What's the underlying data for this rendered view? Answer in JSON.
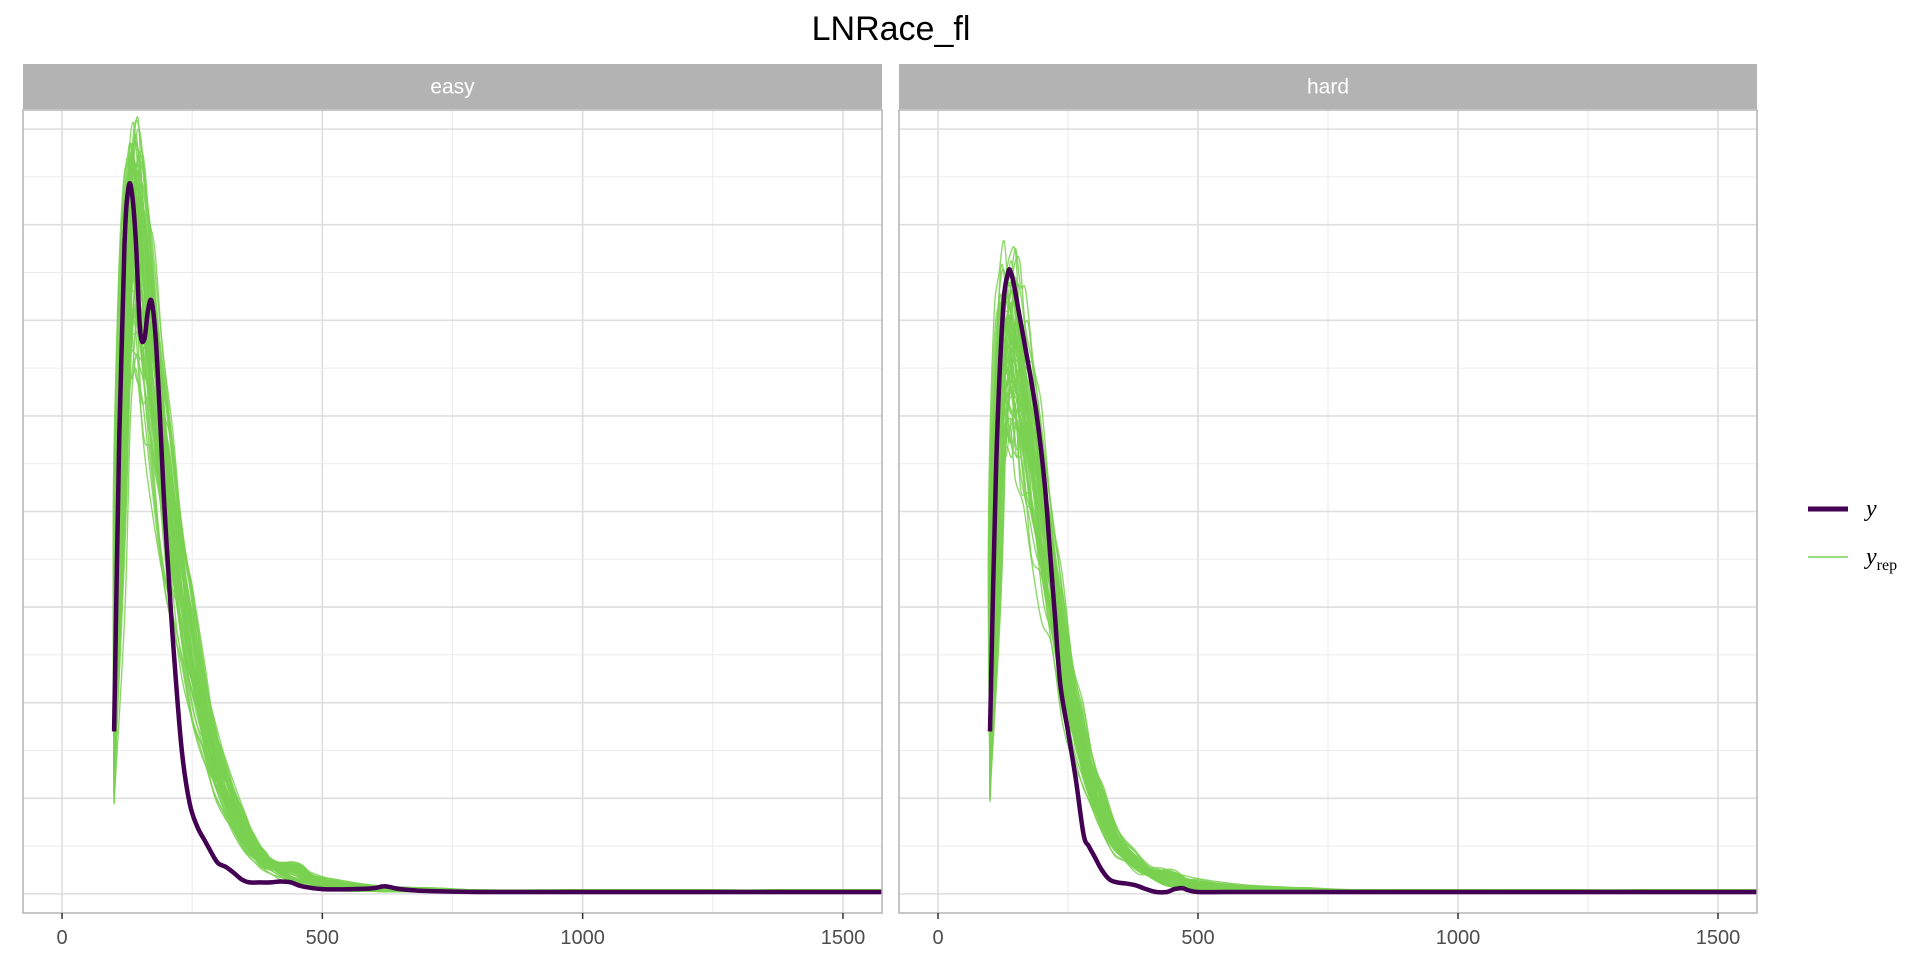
{
  "chart_data": {
    "type": "line",
    "title": "LNRace_fl",
    "xlabel": "",
    "ylabel": "",
    "xlim": [
      -75,
      1575
    ],
    "ylim": [
      -0.0002,
      0.0082
    ],
    "x_ticks": [
      0,
      500,
      1000,
      1500
    ],
    "x_tick_labels": [
      "0",
      "500",
      "1000",
      "1500"
    ],
    "grid": true,
    "legend_position": "right",
    "legend": [
      {
        "key": "y",
        "label": "y",
        "subscript": "",
        "color": "#440154",
        "role": "observed"
      },
      {
        "key": "yrep",
        "label": "y",
        "subscript": "rep",
        "color": "#7ad151",
        "role": "replicated"
      }
    ],
    "colors": {
      "observed": "#440154",
      "replicated": "#7ad151",
      "strip": "#b3b3b3",
      "grid": "#ebebeb"
    },
    "panels": [
      {
        "label": "easy",
        "series": [
          {
            "name": "y",
            "color": "#440154",
            "x": [
              100,
              110,
              120,
              128,
              135,
              142,
              150,
              158,
              165,
              172,
              180,
              188,
              195,
              205,
              215,
              230,
              245,
              260,
              275,
              290,
              300,
              315,
              330,
              345,
              360,
              380,
              400,
              420,
              440,
              460,
              500,
              560,
              600,
              620,
              650,
              700,
              800,
              900,
              1000,
              1200,
              1400,
              1580
            ],
            "y": [
              0.0017,
              0.0048,
              0.0068,
              0.0074,
              0.0073,
              0.0068,
              0.0059,
              0.0058,
              0.0061,
              0.0062,
              0.0058,
              0.005,
              0.0042,
              0.0033,
              0.0025,
              0.0015,
              0.00095,
              0.0007,
              0.00055,
              0.0004,
              0.00032,
              0.00028,
              0.00022,
              0.00015,
              0.00012,
              0.00012,
              0.00012,
              0.00013,
              0.00012,
              8e-05,
              5e-05,
              5e-05,
              6e-05,
              8e-05,
              5e-05,
              3e-05,
              2e-05,
              2e-05,
              2e-05,
              2e-05,
              2e-05,
              2e-05
            ]
          },
          {
            "name": "y_rep (typical draw)",
            "color": "#7ad151",
            "x": [
              100,
              110,
              120,
              130,
              140,
              150,
              165,
              180,
              200,
              220,
              240,
              260,
              280,
              300,
              320,
              340,
              360,
              380,
              400,
              450,
              500,
              600,
              700,
              800,
              1000,
              1200,
              1400,
              1580
            ],
            "y": [
              0.0012,
              0.0038,
              0.0058,
              0.0068,
              0.007,
              0.0067,
              0.006,
              0.0052,
              0.0043,
              0.0035,
              0.0028,
              0.0022,
              0.0017,
              0.0013,
              0.001,
              0.00075,
              0.00055,
              0.0004,
              0.0003,
              0.00015,
              8e-05,
              4e-05,
              3e-05,
              2e-05,
              2e-05,
              2e-05,
              2e-05,
              2e-05
            ]
          }
        ]
      },
      {
        "label": "hard",
        "series": [
          {
            "name": "y",
            "color": "#440154",
            "x": [
              100,
              112,
              125,
              135,
              140,
              145,
              155,
              165,
              175,
              190,
              205,
              215,
              225,
              235,
              250,
              265,
              280,
              290,
              300,
              315,
              330,
              345,
              360,
              380,
              400,
              420,
              440,
              455,
              470,
              480,
              500,
              550,
              600,
              700,
              800,
              1000,
              1200,
              1400,
              1580
            ],
            "y": [
              0.0017,
              0.0045,
              0.0061,
              0.0065,
              0.0065,
              0.0064,
              0.0061,
              0.0058,
              0.0055,
              0.005,
              0.0043,
              0.0036,
              0.0029,
              0.0022,
              0.0017,
              0.0012,
              0.00062,
              0.0005,
              0.0004,
              0.00025,
              0.00015,
              0.00012,
              0.00011,
              9e-05,
              5e-05,
              2e-05,
              2e-05,
              5e-05,
              6e-05,
              4e-05,
              2e-05,
              2e-05,
              2e-05,
              2e-05,
              2e-05,
              2e-05,
              2e-05,
              2e-05,
              2e-05
            ]
          },
          {
            "name": "y_rep (typical draw)",
            "color": "#7ad151",
            "x": [
              100,
              110,
              120,
              130,
              140,
              150,
              160,
              175,
              190,
              210,
              230,
              250,
              270,
              290,
              310,
              330,
              350,
              370,
              400,
              450,
              500,
              600,
              700,
              800,
              1000,
              1200,
              1400,
              1580
            ],
            "y": [
              0.0012,
              0.0035,
              0.0052,
              0.0058,
              0.0059,
              0.0058,
              0.0055,
              0.005,
              0.0044,
              0.0037,
              0.003,
              0.0023,
              0.0018,
              0.0013,
              0.001,
              0.0007,
              0.0005,
              0.0004,
              0.00025,
              0.00012,
              7e-05,
              4e-05,
              3e-05,
              2e-05,
              2e-05,
              2e-05,
              2e-05,
              2e-05
            ]
          }
        ]
      }
    ]
  }
}
